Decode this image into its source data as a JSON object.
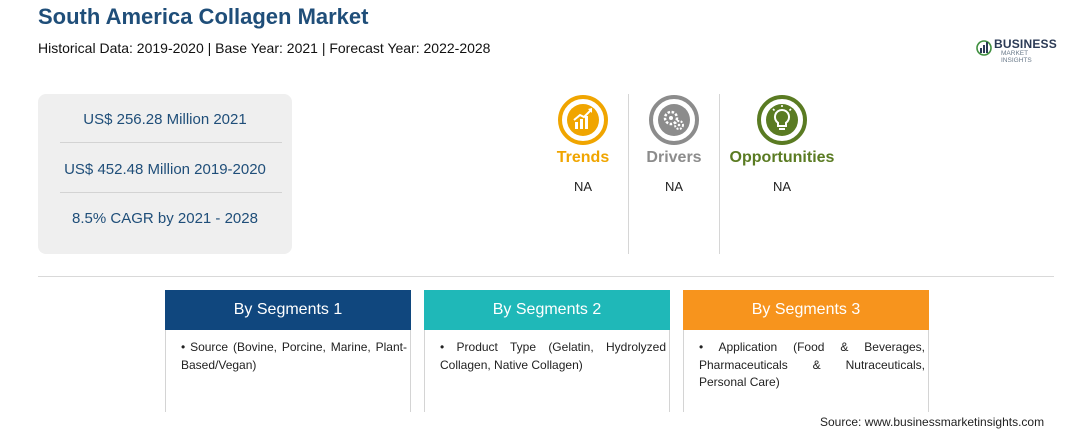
{
  "header": {
    "title": "South America Collagen Market",
    "subtitle": "Historical Data: 2019-2020 | Base Year: 2021 | Forecast Year: 2022-2028"
  },
  "logo": {
    "name": "BUSINESS",
    "tagline": "MARKET INSIGHTS"
  },
  "stats": [
    "US$ 256.28 Million 2021",
    "US$ 452.48 Million 2019-2020",
    "8.5% CAGR by 2021 - 2028"
  ],
  "key_factors": [
    {
      "label": "Trends",
      "value": "NA",
      "color": "#f0a500",
      "icon": "trend-chart-icon"
    },
    {
      "label": "Drivers",
      "value": "NA",
      "color": "#8c8c8c",
      "icon": "gears-icon"
    },
    {
      "label": "Opportunities",
      "value": "NA",
      "color": "#5a7b22",
      "icon": "lightbulb-icon"
    }
  ],
  "segments": [
    {
      "title": "By Segments 1",
      "color": "#10477e",
      "bullet": "•",
      "text": "Source (Bovine, Porcine, Marine, Plant-Based/Vegan)"
    },
    {
      "title": "By Segments 2",
      "color": "#1fb8b8",
      "bullet": "•",
      "text": "Product Type (Gelatin, Hydrolyzed Collagen, Native Collagen)"
    },
    {
      "title": "By Segments 3",
      "color": "#f7941d",
      "bullet": "•",
      "text": "Application (Food & Beverages, Pharmaceuticals & Nutraceuticals, Personal Care)"
    }
  ],
  "source": "Source: www.businessmarketinsights.com"
}
